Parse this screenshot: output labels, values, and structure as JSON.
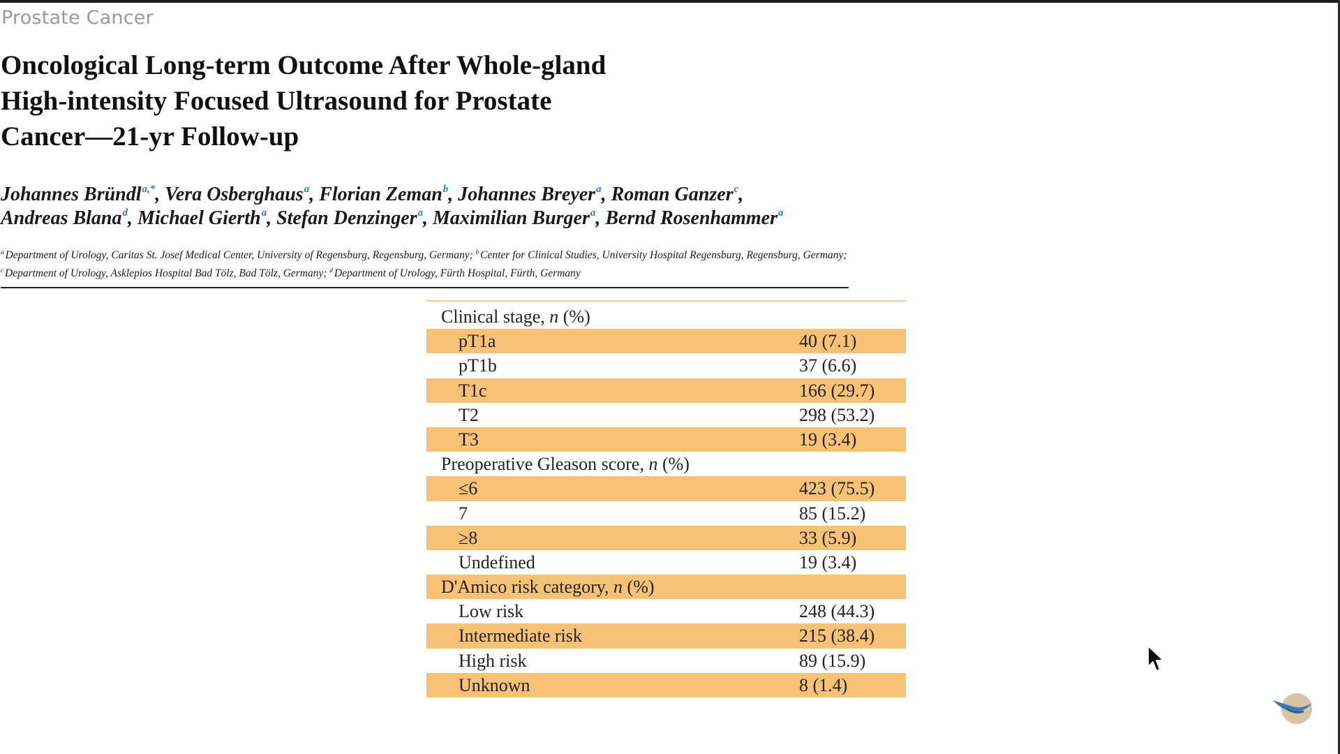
{
  "header": {
    "section_label": "Prostate Cancer",
    "title_lines": [
      "Oncological Long-term Outcome After Whole-gland",
      "High-intensity Focused Ultrasound for Prostate",
      "Cancer—21-yr Follow-up"
    ]
  },
  "authors": [
    {
      "name": "Johannes Bründl",
      "sup": "a,*"
    },
    {
      "name": "Vera Osberghaus",
      "sup": "a"
    },
    {
      "name": "Florian Zeman",
      "sup": "b"
    },
    {
      "name": "Johannes Breyer",
      "sup": "a"
    },
    {
      "name": "Roman Ganzer",
      "sup": "c"
    },
    {
      "name": "Andreas Blana",
      "sup": "d"
    },
    {
      "name": "Michael Gierth",
      "sup": "a"
    },
    {
      "name": "Stefan Denzinger",
      "sup": "a"
    },
    {
      "name": "Maximilian Burger",
      "sup": "a"
    },
    {
      "name": "Bernd Rosenhammer",
      "sup": "a"
    }
  ],
  "affiliations": [
    {
      "sup": "a",
      "text": "Department of Urology, Caritas St. Josef Medical Center, University of Regensburg, Regensburg, Germany;"
    },
    {
      "sup": "b",
      "text": "Center for Clinical Studies, University Hospital Regensburg, Regensburg, Germany;"
    },
    {
      "sup": "c",
      "text": "Department of Urology, Asklepios Hospital Bad Tölz, Bad Tölz, Germany;"
    },
    {
      "sup": "d",
      "text": "Department of Urology, Fürth Hospital, Fürth, Germany"
    }
  ],
  "table": {
    "rows": [
      {
        "kind": "header",
        "label": "Clinical stage, ",
        "label_italic": "n",
        "label_suffix": " (%)",
        "value": "",
        "shaded": false
      },
      {
        "kind": "item",
        "label": "pT1a",
        "value": "40 (7.1)",
        "shaded": true
      },
      {
        "kind": "item",
        "label": "pT1b",
        "value": "37 (6.6)",
        "shaded": false
      },
      {
        "kind": "item",
        "label": "T1c",
        "value": "166 (29.7)",
        "shaded": true
      },
      {
        "kind": "item",
        "label": "T2",
        "value": "298 (53.2)",
        "shaded": false
      },
      {
        "kind": "item",
        "label": "T3",
        "value": "19 (3.4)",
        "shaded": true
      },
      {
        "kind": "header",
        "label": "Preoperative Gleason score, ",
        "label_italic": "n",
        "label_suffix": " (%)",
        "value": "",
        "shaded": false
      },
      {
        "kind": "item",
        "label": "≤6",
        "value": "423 (75.5)",
        "shaded": true
      },
      {
        "kind": "item",
        "label": "7",
        "value": "85 (15.2)",
        "shaded": false
      },
      {
        "kind": "item",
        "label": "≥8",
        "value": "33 (5.9)",
        "shaded": true
      },
      {
        "kind": "item",
        "label": "Undefined",
        "value": "19 (3.4)",
        "shaded": false
      },
      {
        "kind": "header",
        "label": "D'Amico risk category, ",
        "label_italic": "n",
        "label_suffix": " (%)",
        "value": "",
        "shaded": true
      },
      {
        "kind": "item",
        "label": "Low risk",
        "value": "248 (44.3)",
        "shaded": false
      },
      {
        "kind": "item",
        "label": "Intermediate risk",
        "value": "215 (38.4)",
        "shaded": true
      },
      {
        "kind": "item",
        "label": "High risk",
        "value": "89 (15.9)",
        "shaded": false
      },
      {
        "kind": "item",
        "label": "Unknown",
        "value": "8 (1.4)",
        "shaded": true
      }
    ]
  },
  "colors": {
    "row_shade": "#f8c276",
    "superscript": "#2f7fb7",
    "section_label": "#9a9a9a"
  },
  "icons": {
    "cursor": "mouse-pointer-icon",
    "logo": "bird-logo-icon"
  }
}
